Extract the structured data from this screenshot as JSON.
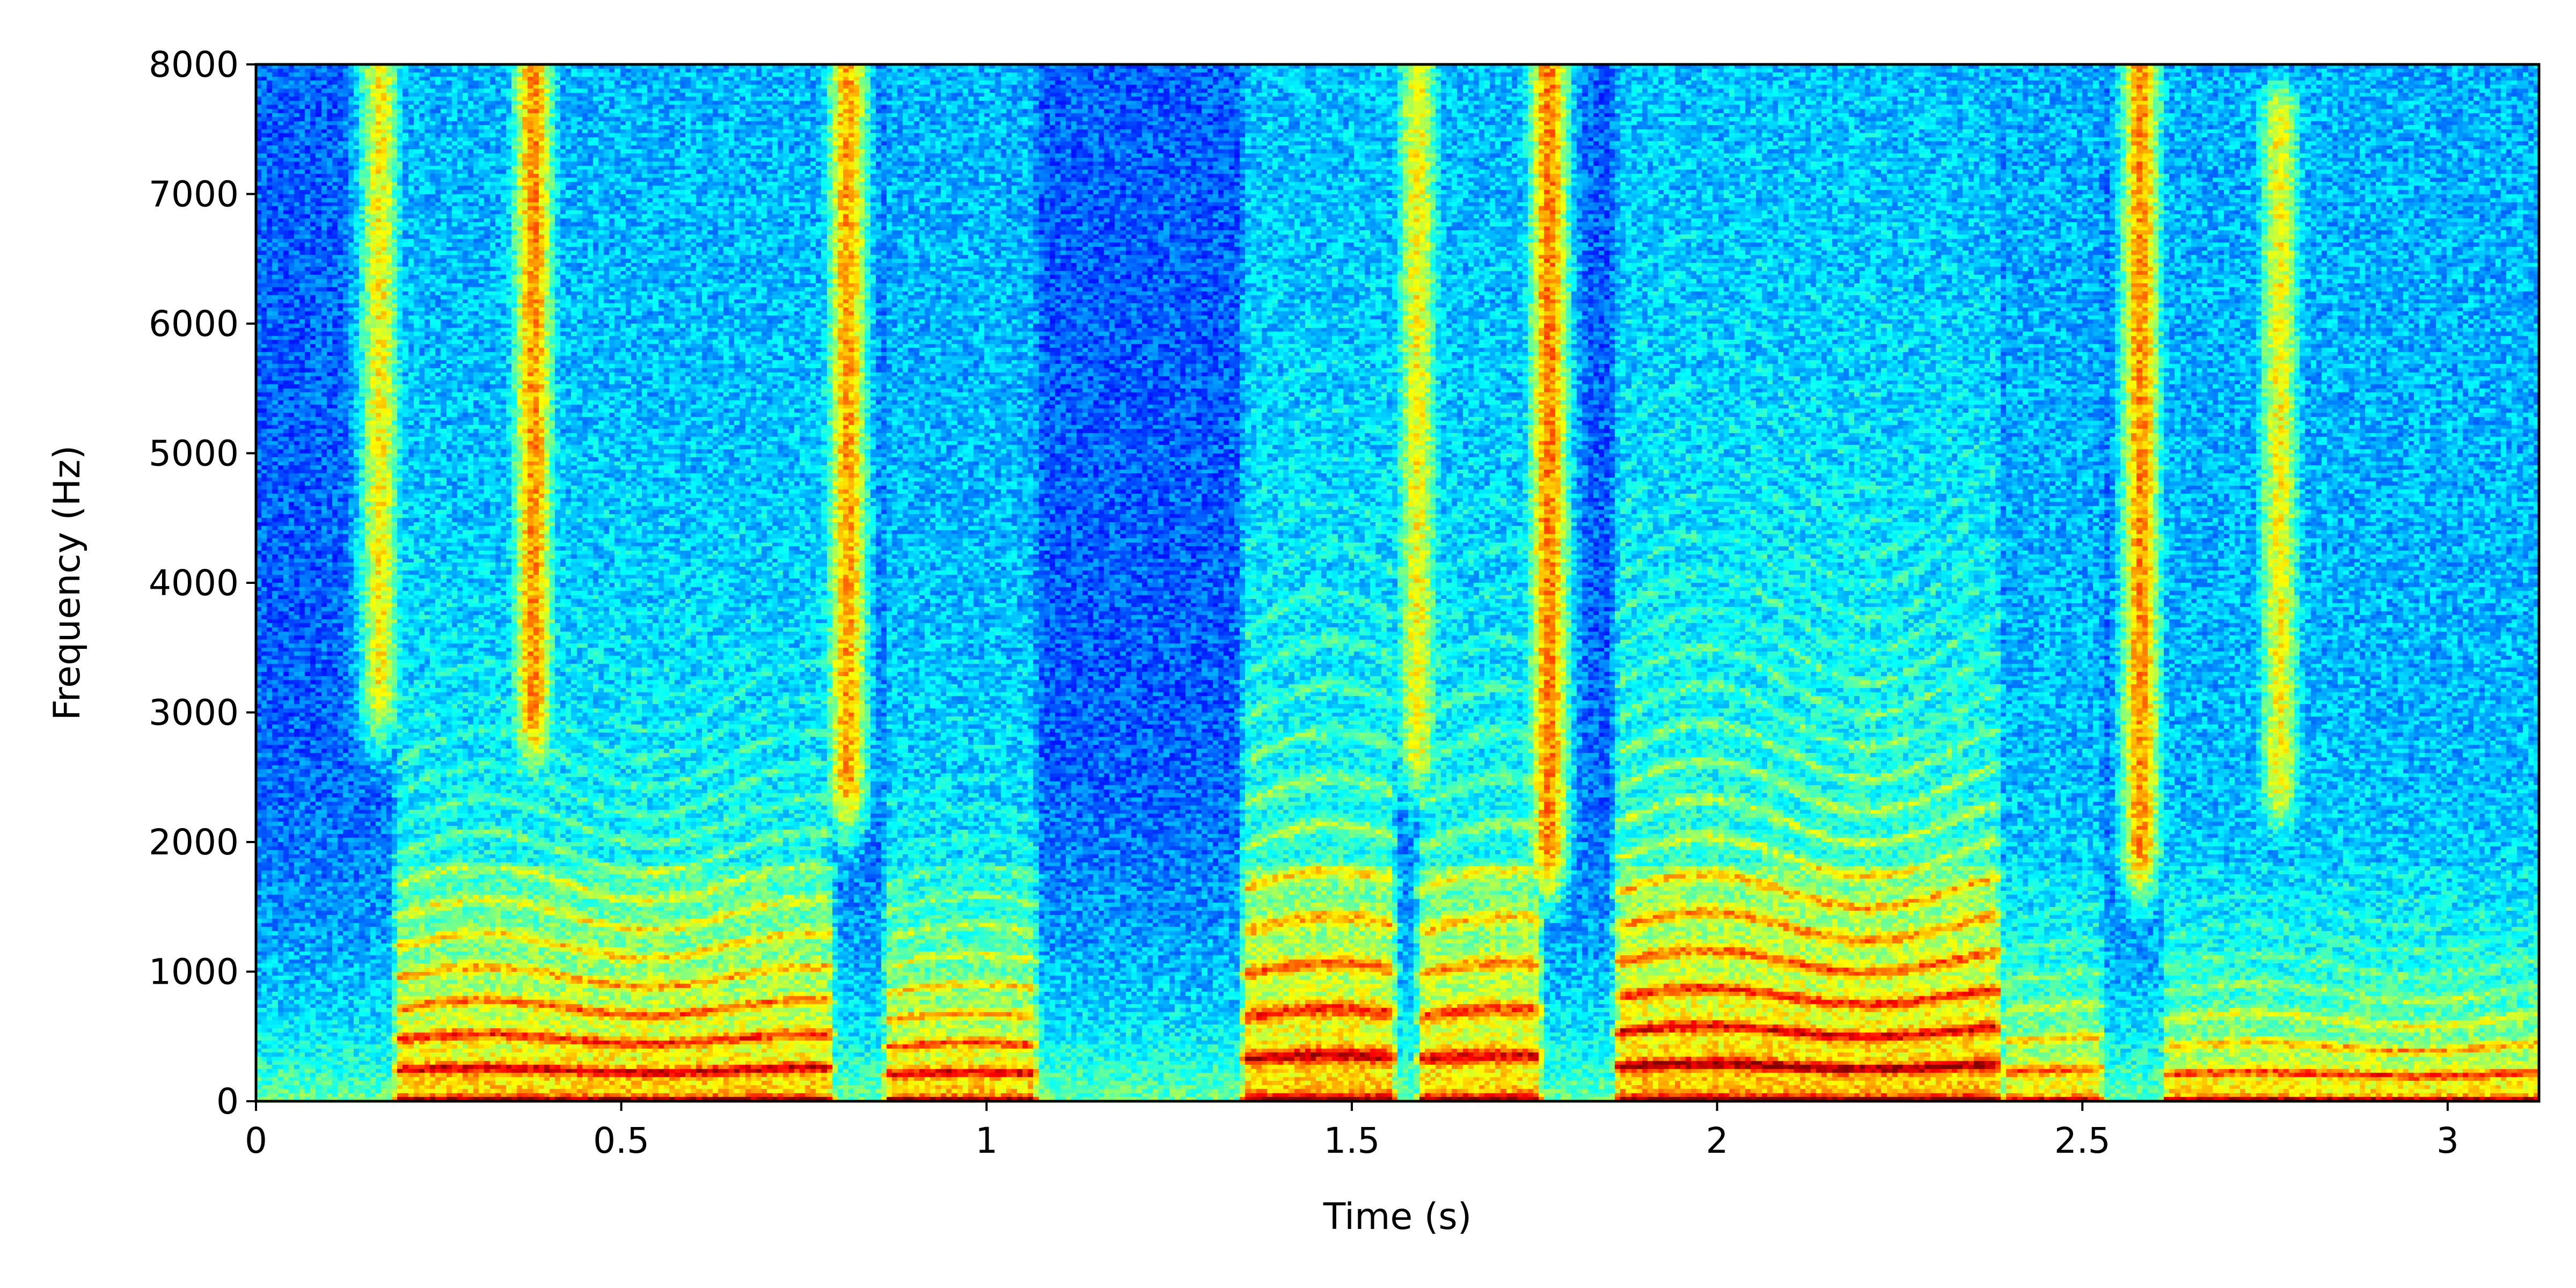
{
  "chart_data": {
    "type": "heatmap",
    "subtype": "spectrogram",
    "title": "",
    "xlabel": "Time (s)",
    "ylabel": "Frequency (Hz)",
    "xlim": [
      0,
      3.125
    ],
    "ylim": [
      0,
      8000
    ],
    "x_ticks": [
      0,
      0.5,
      1,
      1.5,
      2,
      2.5,
      3
    ],
    "x_tick_labels": [
      "0",
      "0.5",
      "1",
      "1.5",
      "2",
      "2.5",
      "3"
    ],
    "y_ticks": [
      0,
      1000,
      2000,
      3000,
      4000,
      5000,
      6000,
      7000,
      8000
    ],
    "y_tick_labels": [
      "0",
      "1000",
      "2000",
      "3000",
      "4000",
      "5000",
      "6000",
      "7000",
      "8000"
    ],
    "colormap": "jet",
    "grid": false,
    "legend": "none",
    "fricative_bursts": [
      {
        "t": 0.17,
        "f_low": 3200,
        "f_high": 8000,
        "intensity": 0.42
      },
      {
        "t": 0.38,
        "f_low": 3000,
        "f_high": 8000,
        "intensity": 0.62
      },
      {
        "t": 0.81,
        "f_low": 2500,
        "f_high": 8000,
        "intensity": 0.6
      },
      {
        "t": 1.59,
        "f_low": 2800,
        "f_high": 8000,
        "intensity": 0.4
      },
      {
        "t": 1.77,
        "f_low": 2000,
        "f_high": 8000,
        "intensity": 0.66
      },
      {
        "t": 2.58,
        "f_low": 2000,
        "f_high": 8000,
        "intensity": 0.62
      },
      {
        "t": 2.77,
        "f_low": 2500,
        "f_high": 7600,
        "intensity": 0.4
      }
    ],
    "voiced_segments": [
      {
        "t_start": 0.2,
        "t_end": 0.78,
        "f0": 240,
        "harmonic_extent": 3200,
        "intensity": 0.82
      },
      {
        "t_start": 0.87,
        "t_end": 1.06,
        "f0": 210,
        "harmonic_extent": 2200,
        "intensity": 0.85
      },
      {
        "t_start": 1.36,
        "t_end": 1.55,
        "f0": 330,
        "harmonic_extent": 4400,
        "intensity": 0.82
      },
      {
        "t_start": 1.6,
        "t_end": 1.75,
        "f0": 330,
        "harmonic_extent": 4000,
        "intensity": 0.78
      },
      {
        "t_start": 1.87,
        "t_end": 2.38,
        "f0": 270,
        "harmonic_extent": 4600,
        "intensity": 0.86
      },
      {
        "t_start": 2.4,
        "t_end": 2.52,
        "f0": 230,
        "harmonic_extent": 1500,
        "intensity": 0.72
      },
      {
        "t_start": 2.62,
        "t_end": 3.125,
        "f0": 210,
        "harmonic_extent": 1400,
        "intensity": 0.78
      }
    ]
  }
}
